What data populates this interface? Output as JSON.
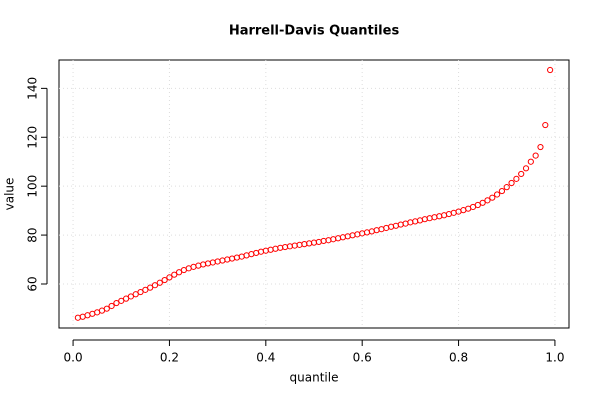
{
  "chart_data": {
    "type": "scatter",
    "title": "Harrell-Davis Quantiles",
    "x_label": "quantile",
    "y_label": "value",
    "color": "#ff0000",
    "grid": true,
    "xlim": [
      -0.0292,
      1.0292
    ],
    "ylim": [
      42,
      151.6
    ],
    "xticks": [
      {
        "value": 0,
        "label": "0.0"
      },
      0.2,
      0.4,
      0.6,
      0.8,
      {
        "value": 1,
        "label": "1.0"
      }
    ],
    "yticks": [
      60,
      80,
      100,
      120,
      140
    ],
    "x": [
      0.01,
      0.02,
      0.03,
      0.04,
      0.05,
      0.06,
      0.07,
      0.08,
      0.09,
      0.1,
      0.11,
      0.12,
      0.13,
      0.14,
      0.15,
      0.16,
      0.17,
      0.18,
      0.19,
      0.2,
      0.21,
      0.22,
      0.23,
      0.24,
      0.25,
      0.26,
      0.27,
      0.28,
      0.29,
      0.3,
      0.31,
      0.32,
      0.33,
      0.34,
      0.35,
      0.36,
      0.37,
      0.38,
      0.39,
      0.4,
      0.41,
      0.42,
      0.43,
      0.44,
      0.45,
      0.46,
      0.47,
      0.48,
      0.49,
      0.5,
      0.51,
      0.52,
      0.53,
      0.54,
      0.55,
      0.56,
      0.57,
      0.58,
      0.59,
      0.6,
      0.61,
      0.62,
      0.63,
      0.64,
      0.65,
      0.66,
      0.67,
      0.68,
      0.69,
      0.7,
      0.71,
      0.72,
      0.73,
      0.74,
      0.75,
      0.76,
      0.77,
      0.78,
      0.79,
      0.8,
      0.81,
      0.82,
      0.83,
      0.84,
      0.85,
      0.86,
      0.87,
      0.88,
      0.89,
      0.9,
      0.91,
      0.92,
      0.93,
      0.94,
      0.95,
      0.96,
      0.97,
      0.98,
      0.99
    ],
    "values": [
      46.2,
      46.6,
      47.2,
      47.8,
      48.4,
      49.1,
      49.9,
      51.0,
      52.2,
      53.1,
      54.0,
      54.9,
      55.8,
      56.7,
      57.6,
      58.5,
      59.5,
      60.5,
      61.6,
      62.7,
      63.8,
      64.8,
      65.7,
      66.4,
      67.0,
      67.5,
      68.0,
      68.4,
      68.8,
      69.2,
      69.6,
      70.0,
      70.4,
      70.8,
      71.2,
      71.7,
      72.2,
      72.7,
      73.2,
      73.6,
      74.0,
      74.4,
      74.8,
      75.1,
      75.4,
      75.7,
      76.0,
      76.3,
      76.6,
      76.9,
      77.2,
      77.6,
      77.9,
      78.3,
      78.7,
      79.1,
      79.5,
      79.9,
      80.3,
      80.7,
      81.1,
      81.5,
      82.0,
      82.4,
      82.9,
      83.4,
      83.8,
      84.3,
      84.7,
      85.2,
      85.6,
      86.0,
      86.5,
      86.9,
      87.3,
      87.7,
      88.1,
      88.6,
      89.1,
      89.6,
      90.2,
      90.8,
      91.5,
      92.3,
      93.2,
      94.2,
      95.3,
      96.6,
      98.0,
      99.6,
      101.3,
      103.0,
      105.0,
      107.3,
      110.0,
      112.5,
      116.0,
      125.0,
      147.5
    ]
  }
}
